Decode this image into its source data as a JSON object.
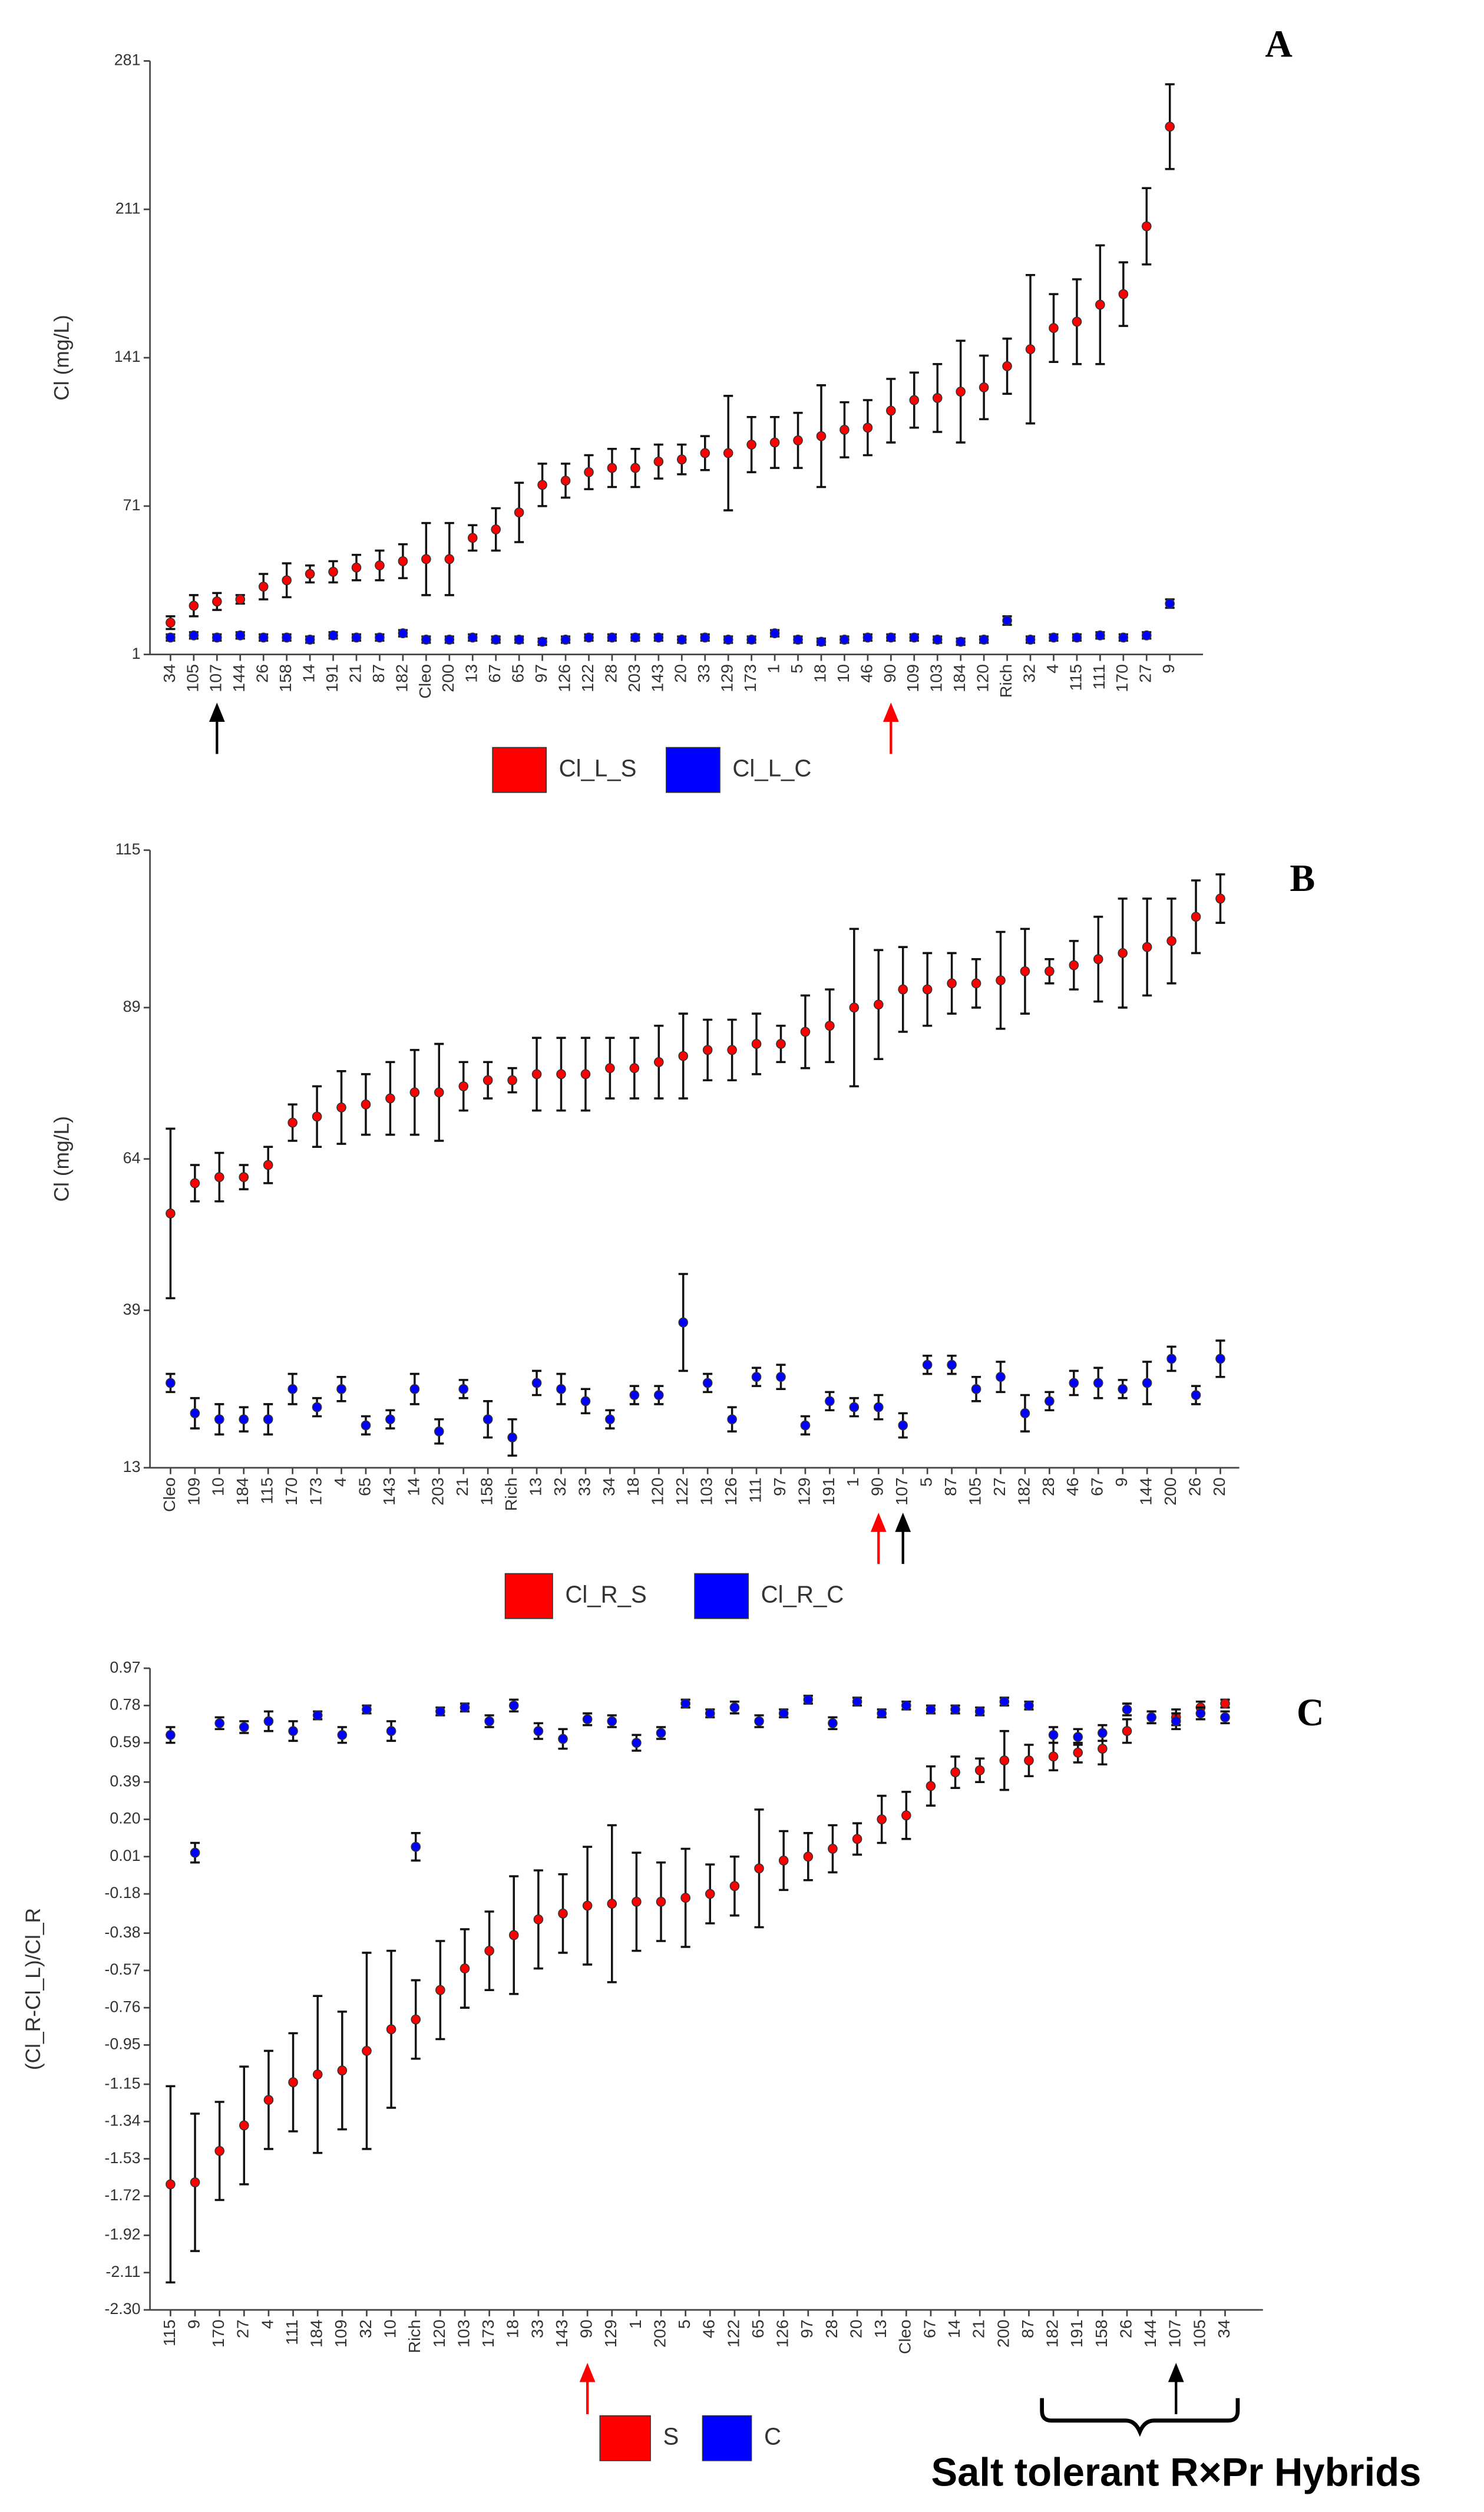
{
  "chart_data": [
    {
      "type": "errorbar",
      "title": "A",
      "y_label": "Cl (mg/L)",
      "ylim": [
        1,
        281
      ],
      "yticks": [
        1,
        71,
        141,
        211,
        281
      ],
      "categories": [
        "34",
        "105",
        "107",
        "144",
        "26",
        "158",
        "14",
        "191",
        "21",
        "87",
        "182",
        "Cleo",
        "200",
        "13",
        "67",
        "65",
        "97",
        "126",
        "122",
        "28",
        "203",
        "143",
        "20",
        "33",
        "129",
        "173",
        "1",
        "5",
        "18",
        "10",
        "46",
        "90",
        "109",
        "103",
        "184",
        "120",
        "Rich",
        "32",
        "4",
        "115",
        "111",
        "170",
        "27",
        "9"
      ],
      "series": [
        {
          "name": "Cl_L_S",
          "color": "#ff0000",
          "values": [
            16,
            24,
            26,
            27,
            33,
            36,
            39,
            40,
            42,
            43,
            45,
            46,
            46,
            56,
            60,
            68,
            81,
            83,
            87,
            89,
            89,
            92,
            93,
            96,
            96,
            100,
            101,
            102,
            104,
            107,
            108,
            116,
            121,
            122,
            125,
            127,
            137,
            145,
            155,
            158,
            166,
            171,
            203,
            250
          ],
          "errors": [
            3,
            5,
            4,
            2,
            6,
            8,
            4,
            5,
            6,
            7,
            8,
            17,
            17,
            6,
            10,
            14,
            10,
            8,
            8,
            9,
            9,
            8,
            7,
            8,
            27,
            13,
            12,
            13,
            24,
            13,
            13,
            15,
            13,
            16,
            24,
            15,
            13,
            35,
            16,
            20,
            28,
            15,
            18,
            20
          ]
        },
        {
          "name": "Cl_L_C",
          "color": "#0000ff",
          "values": [
            9,
            10,
            9,
            10,
            9,
            9,
            8,
            10,
            9,
            9,
            11,
            8,
            8,
            9,
            8,
            8,
            7,
            8,
            9,
            9,
            9,
            9,
            8,
            9,
            8,
            8,
            11,
            8,
            7,
            8,
            9,
            9,
            9,
            8,
            7,
            8,
            17,
            8,
            9,
            9,
            10,
            9,
            10,
            25
          ],
          "errors": [
            1.5,
            1.5,
            1.5,
            1.5,
            1.5,
            1.5,
            1.5,
            1.5,
            1.5,
            1.5,
            1.5,
            1.5,
            1.5,
            1.5,
            1.5,
            1.5,
            1.5,
            1.5,
            1.5,
            1.5,
            1.5,
            1.5,
            1.5,
            1.5,
            1.5,
            1.5,
            1.5,
            1.5,
            1.5,
            1.5,
            1.5,
            1.5,
            1.5,
            1.5,
            1.5,
            1.5,
            2,
            1.5,
            1.5,
            1.5,
            1.5,
            1.5,
            1.5,
            2
          ]
        }
      ]
    },
    {
      "type": "errorbar",
      "title": "B",
      "y_label": "Cl (mg/L)",
      "ylim": [
        13,
        115
      ],
      "yticks": [
        13,
        39,
        64,
        89,
        115
      ],
      "categories": [
        "Cleo",
        "109",
        "10",
        "184",
        "115",
        "170",
        "173",
        "4",
        "65",
        "143",
        "14",
        "203",
        "21",
        "158",
        "Rich",
        "13",
        "32",
        "33",
        "34",
        "18",
        "120",
        "122",
        "103",
        "126",
        "111",
        "97",
        "129",
        "191",
        "1",
        "90",
        "107",
        "5",
        "87",
        "105",
        "27",
        "182",
        "28",
        "46",
        "67",
        "9",
        "144",
        "200",
        "26",
        "20"
      ],
      "series": [
        {
          "name": "Cl_R_S",
          "color": "#ff0000",
          "values": [
            55,
            60,
            61,
            61,
            63,
            70,
            71,
            72.5,
            73,
            74,
            75,
            75,
            76,
            77,
            77,
            78,
            78,
            78,
            79,
            79,
            80,
            81,
            82,
            82,
            83,
            83,
            85,
            86,
            89,
            89.5,
            92,
            92,
            93,
            93,
            93.5,
            95,
            95,
            96,
            97,
            98,
            99,
            100,
            104,
            107
          ],
          "errors": [
            14,
            3,
            4,
            2,
            3,
            3,
            5,
            6,
            5,
            6,
            7,
            8,
            4,
            3,
            2,
            6,
            6,
            6,
            5,
            5,
            6,
            7,
            5,
            5,
            5,
            3,
            6,
            6,
            13,
            9,
            7,
            6,
            5,
            4,
            8,
            7,
            2,
            4,
            7,
            9,
            8,
            7,
            6,
            4
          ]
        },
        {
          "name": "Cl_R_C",
          "color": "#0000ff",
          "values": [
            27,
            22,
            21,
            21,
            21,
            26,
            23,
            26,
            20,
            21,
            26,
            19,
            26,
            21,
            18,
            27,
            26,
            24,
            21,
            25,
            25,
            37,
            27,
            21,
            28,
            28,
            20,
            24,
            23,
            23,
            20,
            30,
            30,
            26,
            28,
            22,
            24,
            27,
            27,
            26,
            27,
            31,
            25,
            31
          ],
          "errors": [
            1.5,
            2.5,
            2.5,
            2,
            2.5,
            2.5,
            1.5,
            2,
            1.5,
            1.5,
            2.5,
            2,
            1.5,
            3,
            3,
            2,
            2.5,
            2,
            1.5,
            1.5,
            1.5,
            8,
            1.5,
            2,
            1.5,
            2,
            1.5,
            1.5,
            1.5,
            2,
            2,
            1.5,
            1.5,
            2,
            2.5,
            3,
            1.5,
            2,
            2.5,
            1.5,
            3.5,
            2,
            1.5,
            3
          ]
        }
      ]
    },
    {
      "type": "errorbar",
      "title": "C",
      "y_label": "(Cl_R-Cl_L)/Cl_R",
      "ylim": [
        -2.3,
        0.97
      ],
      "yticks": [
        0.97,
        0.78,
        0.59,
        0.39,
        {
          "value": 0.2,
          "label": "0.20"
        },
        0.01,
        -0.18,
        -0.38,
        -0.57,
        -0.76,
        -0.95,
        -1.15,
        -1.34,
        -1.53,
        -1.72,
        -1.92,
        -2.11,
        {
          "value": -2.3,
          "label": "-2.30"
        }
      ],
      "categories": [
        "115",
        "9",
        "170",
        "27",
        "4",
        "111",
        "184",
        "109",
        "32",
        "10",
        "Rich",
        "120",
        "103",
        "173",
        "18",
        "33",
        "143",
        "90",
        "129",
        "1",
        "203",
        "5",
        "46",
        "122",
        "65",
        "126",
        "97",
        "28",
        "20",
        "13",
        "Cleo",
        "67",
        "14",
        "21",
        "200",
        "87",
        "182",
        "191",
        "158",
        "26",
        "144",
        "107",
        "105",
        "34"
      ],
      "series": [
        {
          "name": "S",
          "color": "#ff0000",
          "values": [
            -1.66,
            -1.65,
            -1.49,
            -1.36,
            -1.23,
            -1.14,
            -1.1,
            -1.08,
            -0.98,
            -0.87,
            -0.82,
            -0.67,
            -0.56,
            -0.47,
            -0.39,
            -0.31,
            -0.28,
            -0.24,
            -0.23,
            -0.22,
            -0.22,
            -0.2,
            -0.18,
            -0.14,
            -0.05,
            -0.01,
            0.01,
            0.05,
            0.1,
            0.2,
            0.22,
            0.37,
            0.44,
            0.45,
            0.5,
            0.5,
            0.52,
            0.54,
            0.56,
            0.65,
            0.72,
            0.72,
            0.77,
            0.79
          ],
          "errors": [
            0.5,
            0.35,
            0.25,
            0.3,
            0.25,
            0.25,
            0.4,
            0.3,
            0.5,
            0.4,
            0.2,
            0.25,
            0.2,
            0.2,
            0.3,
            0.25,
            0.2,
            0.3,
            0.4,
            0.25,
            0.2,
            0.25,
            0.15,
            0.15,
            0.3,
            0.15,
            0.12,
            0.12,
            0.08,
            0.12,
            0.12,
            0.1,
            0.08,
            0.06,
            0.15,
            0.08,
            0.07,
            0.05,
            0.08,
            0.06,
            0.03,
            0.04,
            0.03,
            0.02
          ]
        },
        {
          "name": "C",
          "color": "#0000ff",
          "values": [
            0.63,
            0.03,
            0.69,
            0.67,
            0.7,
            0.65,
            0.73,
            0.63,
            0.76,
            0.65,
            0.06,
            0.75,
            0.77,
            0.7,
            0.78,
            0.65,
            0.61,
            0.71,
            0.7,
            0.59,
            0.64,
            0.79,
            0.74,
            0.77,
            0.7,
            0.74,
            0.81,
            0.69,
            0.8,
            0.74,
            0.78,
            0.76,
            0.76,
            0.75,
            0.8,
            0.78,
            0.63,
            0.62,
            0.64,
            0.76,
            0.72,
            0.7,
            0.74,
            0.72
          ],
          "errors": [
            0.04,
            0.05,
            0.03,
            0.03,
            0.05,
            0.05,
            0.02,
            0.04,
            0.02,
            0.05,
            0.07,
            0.02,
            0.02,
            0.03,
            0.03,
            0.04,
            0.05,
            0.03,
            0.03,
            0.04,
            0.03,
            0.02,
            0.02,
            0.03,
            0.03,
            0.02,
            0.02,
            0.03,
            0.02,
            0.02,
            0.02,
            0.02,
            0.02,
            0.02,
            0.02,
            0.02,
            0.04,
            0.04,
            0.04,
            0.03,
            0.03,
            0.04,
            0.03,
            0.03
          ]
        }
      ],
      "annotation": "Salt tolerant R×Pr Hybrids"
    }
  ]
}
